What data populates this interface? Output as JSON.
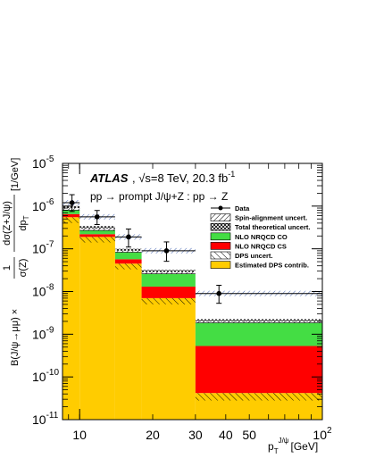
{
  "chart_data": {
    "type": "bar",
    "title": "",
    "annotation": {
      "experiment": "ATLAS",
      "energy": ", √s=8 Te‍V, 20.3 fb",
      "lumi_exp": "-1",
      "process": "pp → prompt J/ψ+Z : pp → Z"
    },
    "xlabel": {
      "main": "p",
      "sub": "T",
      "sup": "J/ψ",
      "unit": "[GeV]"
    },
    "ylabel": {
      "prefix": "B(J/ψ→μμ) ×",
      "frac1_num": "1",
      "frac1_den": "σ(Z)",
      "frac2_num": "dσ(Z+J/ψ)",
      "frac2_den_main": "dp",
      "frac2_den_sub": "T",
      "unit": "[1/GeV]"
    },
    "xscale": "log",
    "yscale": "log",
    "xlim": [
      8.5,
      100
    ],
    "ylim": [
      1e-11,
      1e-05
    ],
    "x_ticks": [
      {
        "value": 10,
        "label": "10"
      },
      {
        "value": 20,
        "label": "20"
      },
      {
        "value": 30,
        "label": "30"
      },
      {
        "value": 40,
        "label": "40"
      },
      {
        "value": 50,
        "label": "50"
      },
      {
        "value": 100,
        "label": "10",
        "exp": "2"
      }
    ],
    "y_ticks": [
      {
        "value": 1e-11,
        "mant": "10",
        "exp": "-11"
      },
      {
        "value": 1e-10,
        "mant": "10",
        "exp": "-10"
      },
      {
        "value": 1e-09,
        "mant": "10",
        "exp": "-9"
      },
      {
        "value": 1e-08,
        "mant": "10",
        "exp": "-8"
      },
      {
        "value": 1e-07,
        "mant": "10",
        "exp": "-7"
      },
      {
        "value": 1e-06,
        "mant": "10",
        "exp": "-6"
      },
      {
        "value": 1e-05,
        "mant": "10",
        "exp": "-5"
      }
    ],
    "bins": [
      {
        "low": 8.5,
        "high": 10,
        "dps": 5.5e-07,
        "dps_unc_low": 4e-07,
        "cs_top": 6.5e-07,
        "co_top": 8e-07,
        "spin_top": 9e-07,
        "total_top": 1e-06
      },
      {
        "low": 10,
        "high": 14,
        "dps": 1.9e-07,
        "dps_unc_low": 1.4e-07,
        "cs_top": 2.2e-07,
        "co_top": 2.7e-07,
        "spin_top": 3e-07,
        "total_top": 3.4e-07
      },
      {
        "low": 14,
        "high": 18,
        "dps": 4.5e-08,
        "dps_unc_low": 3.3e-08,
        "cs_top": 5.7e-08,
        "co_top": 8.3e-08,
        "spin_top": 9e-08,
        "total_top": 1e-07
      },
      {
        "low": 18,
        "high": 30,
        "dps": 7e-09,
        "dps_unc_low": 5e-09,
        "cs_top": 1.3e-08,
        "co_top": 2.6e-08,
        "spin_top": 2.85e-08,
        "total_top": 3.2e-08
      },
      {
        "low": 30,
        "high": 100,
        "dps": 4.2e-11,
        "dps_unc_low": 2.8e-11,
        "cs_top": 5.3e-10,
        "co_top": 1.85e-09,
        "spin_top": 2e-09,
        "total_top": 2.25e-09
      }
    ],
    "data_points": [
      {
        "x": 9.3,
        "y": 1.2e-06,
        "y_low": 7.5e-07,
        "y_high": 1.85e-06,
        "x_low": 8.5,
        "x_high": 10
      },
      {
        "x": 11.8,
        "y": 5.6e-07,
        "y_low": 3.7e-07,
        "y_high": 7.9e-07,
        "x_low": 10,
        "x_high": 14
      },
      {
        "x": 15.9,
        "y": 1.9e-07,
        "y_low": 1.1e-07,
        "y_high": 2.9e-07,
        "x_low": 14,
        "x_high": 18
      },
      {
        "x": 22.8,
        "y": 9e-08,
        "y_low": 5.1e-08,
        "y_high": 1.45e-07,
        "x_low": 18,
        "x_high": 30
      },
      {
        "x": 37.5,
        "y": 9e-09,
        "y_low": 5.3e-09,
        "y_high": 1.4e-08,
        "x_low": 30,
        "x_high": 100
      }
    ],
    "legend": {
      "placement": "top-right",
      "entries": [
        {
          "key": "data",
          "label": "Data"
        },
        {
          "key": "spin",
          "label": "Spin-alignment uncert."
        },
        {
          "key": "total",
          "label": "Total theoretical uncert."
        },
        {
          "key": "co",
          "label": "NLO NRQCD CO"
        },
        {
          "key": "cs",
          "label": "NLO NRQCD CS"
        },
        {
          "key": "dpsunc",
          "label": "DPS uncert."
        },
        {
          "key": "dps",
          "label": "Estimated DPS contrib."
        }
      ]
    },
    "colors": {
      "dps": "#ffcc00",
      "cs": "#ff0000",
      "co": "#44dd44",
      "data": "#000000"
    }
  }
}
